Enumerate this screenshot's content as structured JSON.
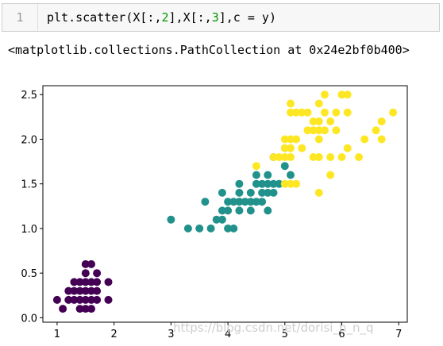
{
  "code_cell": {
    "line_number": "1",
    "code_parts": [
      "plt.scatter(X[:,",
      "2",
      "],X[:,",
      "3",
      "],c = y)"
    ]
  },
  "output": {
    "text": "<matplotlib.collections.PathCollection at 0x24e2bf0b400>"
  },
  "watermark": "https://blog.csdn.net/dorisi_h_n_q",
  "chart_data": {
    "type": "scatter",
    "xlim": [
      0.75,
      7.15
    ],
    "ylim": [
      -0.05,
      2.6
    ],
    "x_ticks": [
      1,
      2,
      3,
      4,
      5,
      6,
      7
    ],
    "y_ticks": [
      0.0,
      0.5,
      1.0,
      1.5,
      2.0,
      2.5
    ],
    "x_tick_labels": [
      "1",
      "2",
      "3",
      "4",
      "5",
      "6",
      "7"
    ],
    "y_tick_labels": [
      "0.0",
      "0.5",
      "1.0",
      "1.5",
      "2.0",
      "2.5"
    ],
    "grid": false,
    "series": [
      {
        "color": "#440154",
        "points": [
          [
            1.0,
            0.2
          ],
          [
            1.1,
            0.1
          ],
          [
            1.2,
            0.2
          ],
          [
            1.3,
            0.2
          ],
          [
            1.3,
            0.3
          ],
          [
            1.3,
            0.4
          ],
          [
            1.4,
            0.1
          ],
          [
            1.4,
            0.2
          ],
          [
            1.4,
            0.3
          ],
          [
            1.4,
            0.4
          ],
          [
            1.5,
            0.1
          ],
          [
            1.5,
            0.2
          ],
          [
            1.5,
            0.3
          ],
          [
            1.5,
            0.4
          ],
          [
            1.5,
            0.5
          ],
          [
            1.6,
            0.2
          ],
          [
            1.6,
            0.3
          ],
          [
            1.6,
            0.4
          ],
          [
            1.6,
            0.6
          ],
          [
            1.7,
            0.2
          ],
          [
            1.7,
            0.3
          ],
          [
            1.7,
            0.4
          ],
          [
            1.7,
            0.5
          ],
          [
            1.9,
            0.2
          ],
          [
            1.9,
            0.4
          ],
          [
            1.2,
            0.3
          ],
          [
            1.6,
            0.1
          ],
          [
            1.5,
            0.6
          ]
        ]
      },
      {
        "color": "#21918c",
        "points": [
          [
            3.0,
            1.1
          ],
          [
            3.3,
            1.0
          ],
          [
            3.5,
            1.0
          ],
          [
            3.6,
            1.3
          ],
          [
            3.7,
            1.0
          ],
          [
            3.8,
            1.1
          ],
          [
            3.9,
            1.1
          ],
          [
            3.9,
            1.2
          ],
          [
            3.9,
            1.4
          ],
          [
            4.0,
            1.0
          ],
          [
            4.0,
            1.2
          ],
          [
            4.0,
            1.3
          ],
          [
            4.1,
            1.0
          ],
          [
            4.1,
            1.3
          ],
          [
            4.2,
            1.2
          ],
          [
            4.2,
            1.3
          ],
          [
            4.2,
            1.5
          ],
          [
            4.3,
            1.3
          ],
          [
            4.4,
            1.2
          ],
          [
            4.4,
            1.3
          ],
          [
            4.4,
            1.4
          ],
          [
            4.5,
            1.3
          ],
          [
            4.5,
            1.5
          ],
          [
            4.6,
            1.3
          ],
          [
            4.6,
            1.4
          ],
          [
            4.6,
            1.5
          ],
          [
            4.7,
            1.2
          ],
          [
            4.7,
            1.4
          ],
          [
            4.7,
            1.5
          ],
          [
            4.7,
            1.6
          ],
          [
            4.8,
            1.4
          ],
          [
            4.8,
            1.8
          ],
          [
            4.9,
            1.5
          ],
          [
            5.0,
            1.7
          ],
          [
            5.1,
            1.6
          ],
          [
            4.5,
            1.6
          ],
          [
            4.2,
            1.4
          ],
          [
            4.8,
            1.5
          ]
        ]
      },
      {
        "color": "#fde725",
        "points": [
          [
            4.5,
            1.7
          ],
          [
            4.8,
            1.8
          ],
          [
            4.9,
            1.8
          ],
          [
            5.0,
            1.5
          ],
          [
            5.0,
            1.8
          ],
          [
            5.0,
            1.9
          ],
          [
            5.0,
            2.0
          ],
          [
            5.1,
            1.5
          ],
          [
            5.1,
            1.8
          ],
          [
            5.1,
            1.9
          ],
          [
            5.1,
            2.0
          ],
          [
            5.1,
            2.3
          ],
          [
            5.1,
            2.4
          ],
          [
            5.2,
            2.0
          ],
          [
            5.2,
            2.3
          ],
          [
            5.3,
            1.9
          ],
          [
            5.3,
            2.3
          ],
          [
            5.4,
            2.1
          ],
          [
            5.4,
            2.3
          ],
          [
            5.5,
            1.8
          ],
          [
            5.5,
            2.1
          ],
          [
            5.5,
            2.2
          ],
          [
            5.6,
            1.4
          ],
          [
            5.6,
            1.8
          ],
          [
            5.6,
            2.1
          ],
          [
            5.6,
            2.2
          ],
          [
            5.6,
            2.4
          ],
          [
            5.7,
            2.1
          ],
          [
            5.7,
            2.3
          ],
          [
            5.7,
            2.5
          ],
          [
            5.8,
            1.6
          ],
          [
            5.8,
            1.8
          ],
          [
            5.8,
            2.2
          ],
          [
            5.9,
            2.1
          ],
          [
            5.9,
            2.3
          ],
          [
            6.0,
            1.8
          ],
          [
            6.0,
            2.5
          ],
          [
            6.1,
            1.9
          ],
          [
            6.1,
            2.3
          ],
          [
            6.1,
            2.5
          ],
          [
            6.3,
            1.8
          ],
          [
            6.4,
            2.0
          ],
          [
            6.6,
            2.1
          ],
          [
            6.7,
            2.0
          ],
          [
            6.7,
            2.2
          ],
          [
            6.9,
            2.3
          ],
          [
            5.2,
            1.5
          ],
          [
            5.6,
            2.0
          ]
        ]
      }
    ]
  }
}
